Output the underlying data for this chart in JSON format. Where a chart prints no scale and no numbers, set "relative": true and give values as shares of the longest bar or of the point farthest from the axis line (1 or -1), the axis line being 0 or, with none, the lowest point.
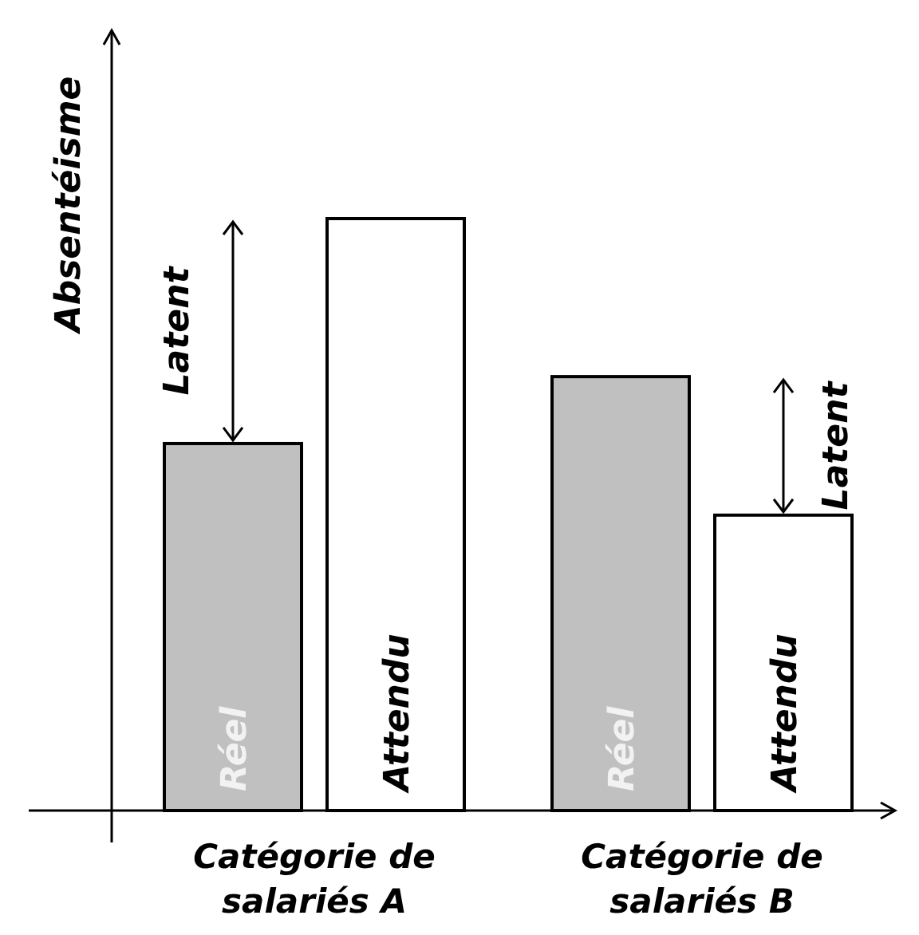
{
  "chart_data": {
    "type": "bar",
    "relative": true,
    "ylabel": "Absentéisme",
    "categories": [
      "Catégorie de salariés A",
      "Catégorie de salariés B"
    ],
    "series": [
      {
        "name": "Réel",
        "color": "#c0c0c0",
        "values": [
          0.62,
          0.733
        ]
      },
      {
        "name": "Attendu",
        "color": "#ffffff",
        "values": [
          1,
          0.499
        ]
      }
    ],
    "annotations": [
      "Latent",
      "Latent"
    ]
  }
}
